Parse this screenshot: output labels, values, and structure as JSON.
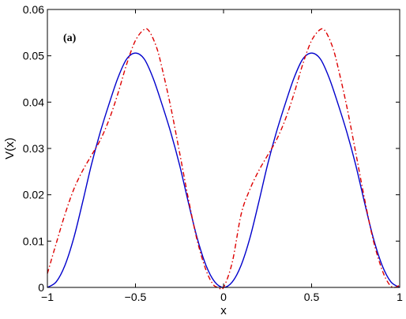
{
  "chart_data": {
    "type": "line",
    "title": "",
    "panel_label": "(a)",
    "xlabel": "x",
    "ylabel": "V(x)",
    "xlim": [
      -1,
      1
    ],
    "ylim": [
      0,
      0.06
    ],
    "grid": false,
    "legend": "none",
    "x_ticks": [
      -1,
      -0.5,
      0,
      0.5,
      1
    ],
    "x_tick_labels": [
      "−1",
      "−0.5",
      "0",
      "0.5",
      "1"
    ],
    "y_ticks": [
      0,
      0.01,
      0.02,
      0.03,
      0.04,
      0.05,
      0.06
    ],
    "y_tick_labels": [
      "0",
      "0.01",
      "0.02",
      "0.03",
      "0.04",
      "0.05",
      "0.06"
    ],
    "series": [
      {
        "color": "#0000cc",
        "style": "solid",
        "points": [
          [
            -1.0,
            0.0
          ],
          [
            -0.95,
            0.0012
          ],
          [
            -0.9,
            0.0048
          ],
          [
            -0.85,
            0.0107
          ],
          [
            -0.8,
            0.0184
          ],
          [
            -0.75,
            0.0265
          ],
          [
            -0.7,
            0.0335
          ],
          [
            -0.65,
            0.0396
          ],
          [
            -0.6,
            0.0452
          ],
          [
            -0.55,
            0.0493
          ],
          [
            -0.5,
            0.0506
          ],
          [
            -0.45,
            0.0493
          ],
          [
            -0.4,
            0.0452
          ],
          [
            -0.35,
            0.0396
          ],
          [
            -0.3,
            0.0335
          ],
          [
            -0.25,
            0.0265
          ],
          [
            -0.2,
            0.0184
          ],
          [
            -0.15,
            0.0107
          ],
          [
            -0.1,
            0.0048
          ],
          [
            -0.05,
            0.0012
          ],
          [
            0.0,
            0.0
          ],
          [
            0.05,
            0.0012
          ],
          [
            0.1,
            0.0048
          ],
          [
            0.15,
            0.0107
          ],
          [
            0.2,
            0.0184
          ],
          [
            0.25,
            0.0265
          ],
          [
            0.3,
            0.0335
          ],
          [
            0.35,
            0.0396
          ],
          [
            0.4,
            0.0452
          ],
          [
            0.45,
            0.0493
          ],
          [
            0.5,
            0.0506
          ],
          [
            0.55,
            0.0493
          ],
          [
            0.6,
            0.0452
          ],
          [
            0.65,
            0.0396
          ],
          [
            0.7,
            0.0335
          ],
          [
            0.75,
            0.0265
          ],
          [
            0.8,
            0.0184
          ],
          [
            0.85,
            0.0107
          ],
          [
            0.9,
            0.0048
          ],
          [
            0.95,
            0.0012
          ],
          [
            1.0,
            0.0
          ]
        ]
      },
      {
        "color": "#dd0000",
        "style": "dash-dot",
        "points": [
          [
            -1.0,
            0.003
          ],
          [
            -0.95,
            0.0095
          ],
          [
            -0.9,
            0.0158
          ],
          [
            -0.85,
            0.0212
          ],
          [
            -0.8,
            0.0252
          ],
          [
            -0.75,
            0.0285
          ],
          [
            -0.7,
            0.0318
          ],
          [
            -0.65,
            0.0362
          ],
          [
            -0.6,
            0.0418
          ],
          [
            -0.55,
            0.0482
          ],
          [
            -0.5,
            0.0533
          ],
          [
            -0.45,
            0.0557
          ],
          [
            -0.42,
            0.0552
          ],
          [
            -0.38,
            0.0518
          ],
          [
            -0.35,
            0.0475
          ],
          [
            -0.3,
            0.039
          ],
          [
            -0.25,
            0.0292
          ],
          [
            -0.2,
            0.0192
          ],
          [
            -0.15,
            0.0102
          ],
          [
            -0.1,
            0.0038
          ],
          [
            -0.06,
            0.0007
          ],
          [
            -0.03,
            0.0
          ],
          [
            0.0,
            0.0
          ],
          [
            0.05,
            0.0055
          ],
          [
            0.1,
            0.0158
          ],
          [
            0.15,
            0.0212
          ],
          [
            0.2,
            0.0252
          ],
          [
            0.25,
            0.0285
          ],
          [
            0.3,
            0.0318
          ],
          [
            0.35,
            0.0362
          ],
          [
            0.4,
            0.0418
          ],
          [
            0.45,
            0.0482
          ],
          [
            0.5,
            0.0533
          ],
          [
            0.55,
            0.0557
          ],
          [
            0.58,
            0.0552
          ],
          [
            0.62,
            0.0518
          ],
          [
            0.65,
            0.0475
          ],
          [
            0.7,
            0.039
          ],
          [
            0.75,
            0.0292
          ],
          [
            0.8,
            0.0192
          ],
          [
            0.85,
            0.0102
          ],
          [
            0.9,
            0.0038
          ],
          [
            0.94,
            0.0007
          ],
          [
            0.97,
            0.0
          ],
          [
            1.0,
            0.0005
          ]
        ]
      }
    ]
  }
}
